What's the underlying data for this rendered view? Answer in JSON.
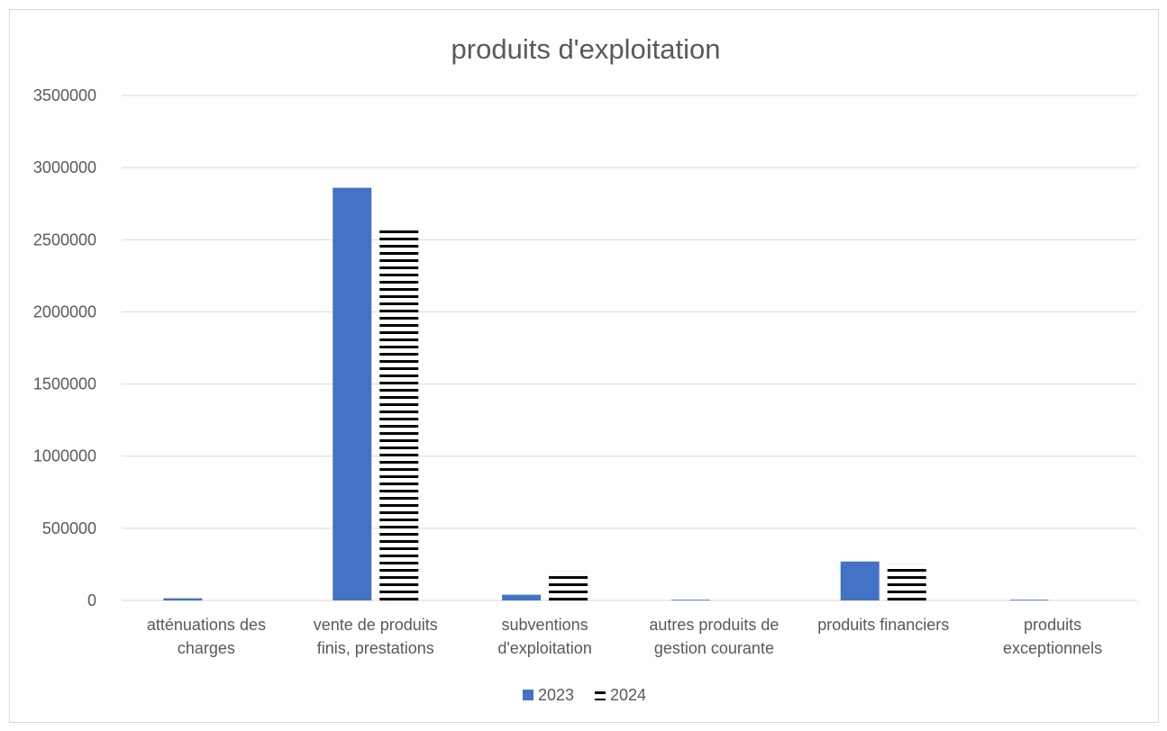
{
  "chart_data": {
    "type": "bar",
    "title": "produits d'exploitation",
    "xlabel": "",
    "ylabel": "",
    "ylim": [
      0,
      3500000
    ],
    "yticks": [
      0,
      500000,
      1000000,
      1500000,
      2000000,
      2500000,
      3000000,
      3500000
    ],
    "grid": true,
    "legend_position": "bottom",
    "categories": [
      [
        "atténuations des",
        "charges"
      ],
      [
        "vente de produits",
        "finis, prestations"
      ],
      [
        "subventions",
        "d'exploitation"
      ],
      [
        "autres produits de",
        "gestion courante"
      ],
      [
        "produits financiers"
      ],
      [
        "produits",
        "exceptionnels"
      ]
    ],
    "series": [
      {
        "name": "2023",
        "color": "#4472c4",
        "pattern": "solid",
        "values": [
          15000,
          2860000,
          40000,
          5000,
          270000,
          5000
        ]
      },
      {
        "name": "2024",
        "color": "#000000",
        "pattern": "horizontal-stripes",
        "values": [
          0,
          2590000,
          200000,
          0,
          250000,
          0
        ]
      }
    ]
  }
}
